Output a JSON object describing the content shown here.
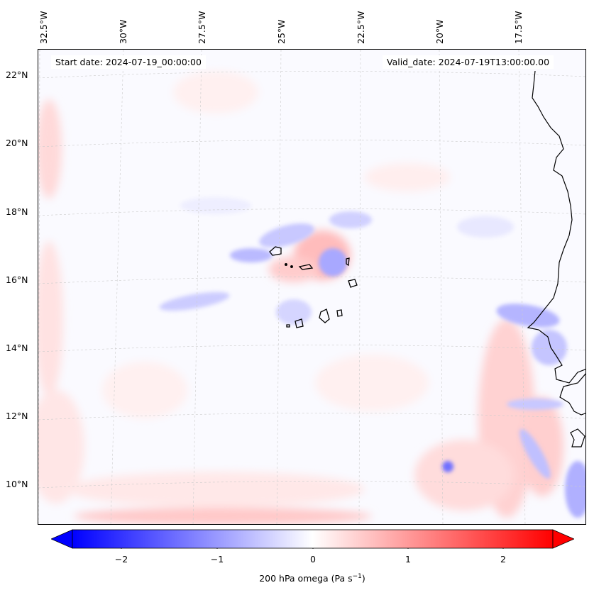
{
  "map": {
    "lon_labels": [
      "32.5°W",
      "30°W",
      "27.5°W",
      "25°W",
      "22.5°W",
      "20°W",
      "17.5°W"
    ],
    "lat_labels": [
      "22°N",
      "20°N",
      "18°N",
      "16°N",
      "14°N",
      "12°N",
      "10°N"
    ],
    "start_date": "Start date: 2024-07-19_00:00:00",
    "valid_date": "Valid_date: 2024-07-19T13:00:00.00"
  },
  "colorbar": {
    "ticks": [
      "−2",
      "−1",
      "0",
      "1",
      "2"
    ],
    "label_prefix": "200 hPa omega (Pa s",
    "label_exp": "−1",
    "label_suffix": ")",
    "colors": {
      "negative": "#0000ff",
      "neutral": "#ffffff",
      "positive": "#ff0000"
    }
  }
}
